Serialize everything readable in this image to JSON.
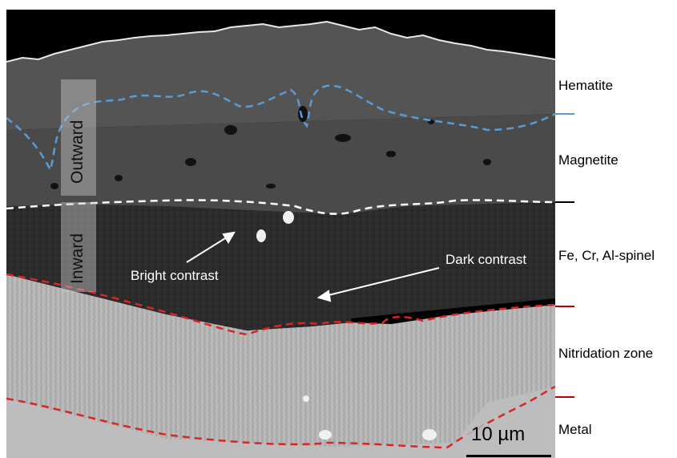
{
  "layers": [
    {
      "id": "hematite",
      "label": "Hematite"
    },
    {
      "id": "magnetite",
      "label": "Magnetite"
    },
    {
      "id": "spinel",
      "label": "Fe, Cr, Al-spinel"
    },
    {
      "id": "nitridation",
      "label": "Nitridation zone"
    },
    {
      "id": "metal",
      "label": "Metal"
    }
  ],
  "growth": {
    "outward": "Outward",
    "inward": "Inward"
  },
  "annotations": {
    "bright": "Bright contrast",
    "dark": "Dark contrast"
  },
  "scale_bar": {
    "label": "10 µm"
  },
  "colors": {
    "hematite_magnetite_boundary": "#5b9bd5",
    "magnetite_spinel_boundary": "#ffffff",
    "spinel_nitridation_boundary": "#d62728",
    "nitridation_metal_boundary": "#d62728",
    "tick_hematite": "#5b9bd5",
    "tick_magnetite": "#000000",
    "tick_spinel": "#c00000",
    "tick_nitridation": "#c00000"
  }
}
